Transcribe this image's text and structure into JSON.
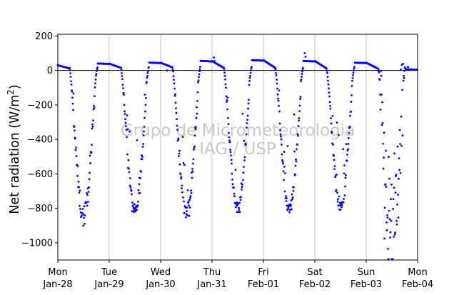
{
  "chart_data": {
    "type": "scatter",
    "title": "",
    "xlabel": "",
    "ylabel": "Net radiation (W/m²)",
    "ylabel_main": "Net radiation (W/m",
    "ylabel_sup": "2",
    "ylabel_close": ")",
    "xlim": [
      "2013-01-28 00:00",
      "2013-02-04 00:00"
    ],
    "ylim": [
      -1100,
      210
    ],
    "yticks": [
      200,
      0,
      -200,
      -400,
      -600,
      -800,
      -1000
    ],
    "ytick_labels": [
      "200",
      "0",
      "−200",
      "−400",
      "−600",
      "−800",
      "−1000"
    ],
    "xticks": [
      {
        "x": "2013-01-28",
        "line1": "Mon",
        "line2": "Jan-28"
      },
      {
        "x": "2013-01-29",
        "line1": "Tue",
        "line2": "Jan-29"
      },
      {
        "x": "2013-01-30",
        "line1": "Wed",
        "line2": "Jan-30"
      },
      {
        "x": "2013-01-31",
        "line1": "Thu",
        "line2": "Jan-31"
      },
      {
        "x": "2013-02-01",
        "line1": "Fri",
        "line2": "Feb-01"
      },
      {
        "x": "2013-02-02",
        "line1": "Sat",
        "line2": "Feb-02"
      },
      {
        "x": "2013-02-03",
        "line1": "Sun",
        "line2": "Feb-03"
      },
      {
        "x": "2013-02-04",
        "line1": "Mon",
        "line2": "Feb-04"
      }
    ],
    "grid": "vertical lines at day ticks",
    "reference_line_y": 0,
    "marker_color": "#0000ff",
    "grid_color": "#b0b0b0",
    "watermark_line1": "Grupo de Micrometeorologia",
    "watermark_line2": "IAG / USP",
    "watermark_color": "#c8c8c8",
    "daily_cycles": [
      {
        "date": "2013-01-28",
        "night_start": 30,
        "night_end": 12,
        "sunrise_hour": 5.5,
        "sunset_hour": 18.5,
        "min_hour": 11.5,
        "min_value": -845,
        "noise": 25
      },
      {
        "date": "2013-01-29",
        "night_start": 40,
        "night_end": 15,
        "sunrise_hour": 5.5,
        "sunset_hour": 18.5,
        "min_hour": 11.8,
        "min_value": -820,
        "noise": 20
      },
      {
        "date": "2013-01-30",
        "night_start": 45,
        "night_end": 18,
        "sunrise_hour": 5.5,
        "sunset_hour": 18.6,
        "min_hour": 11.9,
        "min_value": -830,
        "noise": 22
      },
      {
        "date": "2013-01-31",
        "night_start": 55,
        "night_end": 15,
        "sunrise_hour": 5.5,
        "sunset_hour": 18.5,
        "min_hour": 11.6,
        "min_value": -805,
        "noise": 18
      },
      {
        "date": "2013-02-01",
        "night_start": 60,
        "night_end": 15,
        "sunrise_hour": 5.5,
        "sunset_hour": 18.6,
        "min_hour": 11.7,
        "min_value": -805,
        "noise": 15
      },
      {
        "date": "2013-02-02",
        "night_start": 55,
        "night_end": 12,
        "sunrise_hour": 5.5,
        "sunset_hour": 18.5,
        "min_hour": 11.9,
        "min_value": -800,
        "noise": 18
      },
      {
        "date": "2013-02-03",
        "night_start": 45,
        "night_end": 10,
        "sunrise_hour": 5.6,
        "sunset_hour": 18.2,
        "min_hour": 12.0,
        "min_value": -1020,
        "noise": 200
      }
    ],
    "outliers": [
      {
        "x": "2013-01-31 00:50",
        "y": 75
      },
      {
        "x": "2013-01-31 01:10",
        "y": 55
      },
      {
        "x": "2013-01-30 03:00",
        "y": 0
      },
      {
        "x": "2013-02-01 19:20",
        "y": 100
      },
      {
        "x": "2013-02-01 19:40",
        "y": 80
      },
      {
        "x": "2013-02-03 19:30",
        "y": 20
      }
    ]
  }
}
